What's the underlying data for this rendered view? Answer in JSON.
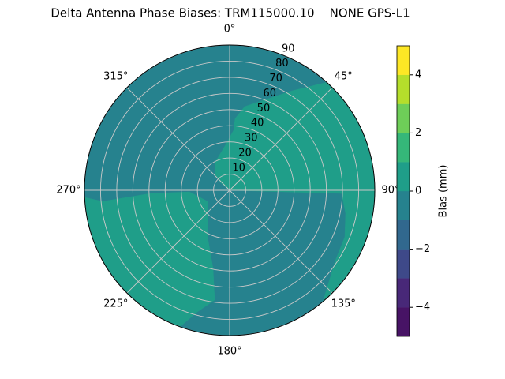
{
  "chart_data": {
    "type": "polar_contour",
    "title": "Delta Antenna Phase Biases: TRM115000.10    NONE GPS-L1",
    "rlim": [
      0,
      90
    ],
    "rticks": [
      10,
      20,
      30,
      40,
      50,
      60,
      70,
      80,
      90
    ],
    "thetaticks": [
      {
        "value": 0,
        "label": "0°"
      },
      {
        "value": 45,
        "label": "45°"
      },
      {
        "value": 90,
        "label": "90°"
      },
      {
        "value": 135,
        "label": "135°"
      },
      {
        "value": 180,
        "label": "180°"
      },
      {
        "value": 225,
        "label": "225°"
      },
      {
        "value": 270,
        "label": "270°"
      },
      {
        "value": 315,
        "label": "315°"
      }
    ],
    "grid": true,
    "levels": [
      -5,
      -4,
      -3,
      -2,
      -1,
      0,
      1,
      2,
      3,
      4,
      5
    ],
    "colors": [
      "#471365",
      "#482878",
      "#3e4989",
      "#31688e",
      "#26828e",
      "#1f9e89",
      "#35b779",
      "#6ece58",
      "#b5de2b",
      "#fde725"
    ],
    "base_level": -1,
    "regions": [
      {
        "level": 0,
        "azimuth": [
          0,
          91.6,
          101.2,
          112.0,
          123.6,
          140,
          130,
          120,
          110,
          100,
          90,
          80,
          70,
          60,
          50,
          42,
          32.1,
          22.9,
          10.2,
          4.4,
          3.8,
          353.9,
          333.4,
          317.9,
          309.3
        ],
        "zenith": [
          0,
          69.5,
          73.3,
          77.0,
          78.7,
          90,
          90,
          90,
          90,
          90,
          90,
          90,
          90,
          90,
          90,
          90,
          72.7,
          61.6,
          52.7,
          44.6,
          37.3,
          27.5,
          19.7,
          13.8,
          7.0
        ]
      },
      {
        "level": 0,
        "azimuth": [
          267.2,
          265.0,
          267.7,
          267.8,
          243.4,
          205.4,
          192.0,
          187.8,
          194.9,
          200,
          210,
          220,
          230,
          240,
          250,
          260
        ],
        "zenith": [
          90,
          79.0,
          49.4,
          24.9,
          15.3,
          31.9,
          49.5,
          68.6,
          78.0,
          90,
          90,
          90,
          90,
          90,
          90,
          90
        ]
      }
    ],
    "colorbar_label": "Bias (mm)",
    "colorbar_ticks": [
      {
        "value": -4,
        "label": "−4"
      },
      {
        "value": -2,
        "label": "−2"
      },
      {
        "value": 0,
        "label": "0"
      },
      {
        "value": 2,
        "label": "2"
      },
      {
        "value": 4,
        "label": "4"
      }
    ]
  }
}
